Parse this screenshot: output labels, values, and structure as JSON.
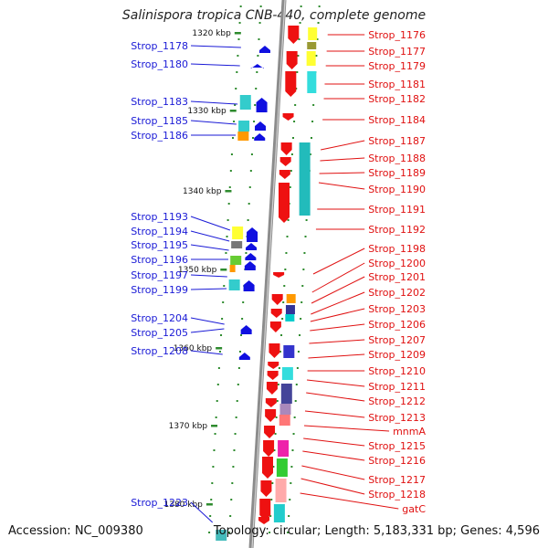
{
  "title": "Salinispora tropica CNB-440, complete genome",
  "accession": "Accession: NC_009380",
  "topology": "Topology: circular; Length: 5,183,331 bp; Genes: 4,596",
  "colors": {
    "backbone": "#8c8c8c",
    "left_label": "#1a1ad6",
    "right_label": "#e01010",
    "tick": "#2e8b2e",
    "reverse_gene": "#1010e0",
    "forward_gene": "#ee1111"
  },
  "ticks": [
    "1320 kbp",
    "1330 kbp",
    "1340 kbp",
    "1350 kbp",
    "1360 kbp",
    "1370 kbp",
    "1380 kbp"
  ],
  "left_genes": [
    "Strop_1178",
    "Strop_1180",
    "Strop_1183",
    "Strop_1185",
    "Strop_1186",
    "Strop_1193",
    "Strop_1194",
    "Strop_1195",
    "Strop_1196",
    "Strop_1197",
    "Strop_1199",
    "Strop_1204",
    "Strop_1205",
    "Strop_1208",
    "Strop_1223"
  ],
  "right_genes": [
    "Strop_1176",
    "Strop_1177",
    "Strop_1179",
    "Strop_1181",
    "Strop_1182",
    "Strop_1184",
    "Strop_1187",
    "Strop_1188",
    "Strop_1189",
    "Strop_1190",
    "Strop_1191",
    "Strop_1192",
    "Strop_1198",
    "Strop_1200",
    "Strop_1201",
    "Strop_1202",
    "Strop_1203",
    "Strop_1206",
    "Strop_1207",
    "Strop_1209",
    "Strop_1210",
    "Strop_1211",
    "Strop_1212",
    "Strop_1213",
    "mnmA",
    "Strop_1215",
    "Strop_1216",
    "Strop_1217",
    "Strop_1218",
    "gatC"
  ]
}
